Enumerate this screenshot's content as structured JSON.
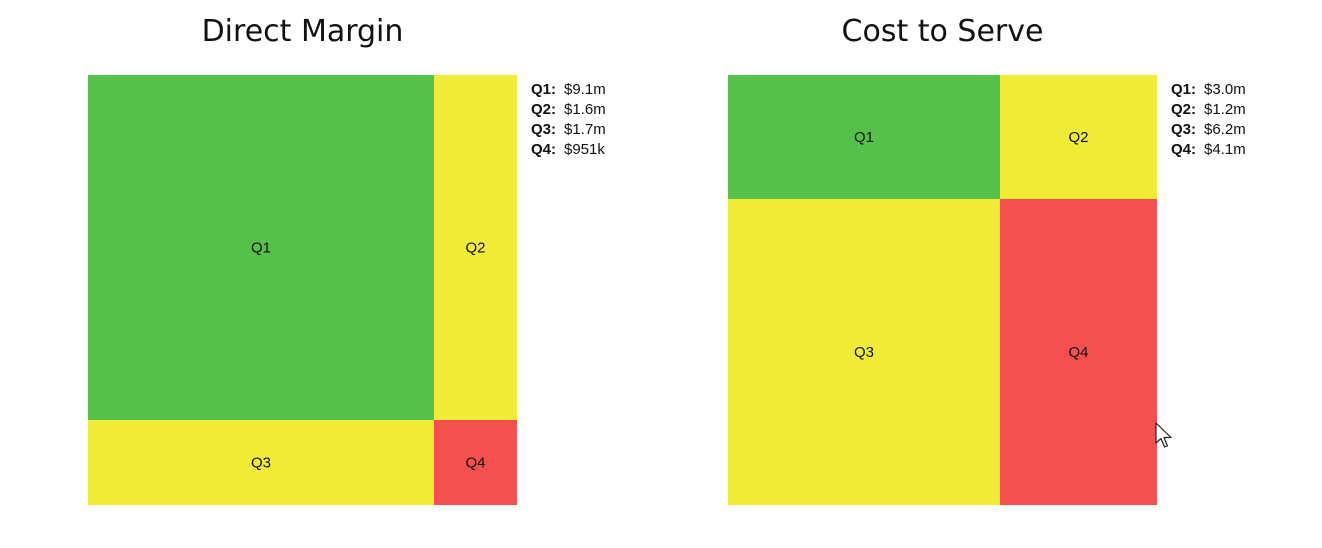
{
  "colors": {
    "green": "#55c14a",
    "yellow": "#f0eb37",
    "red": "#f55050"
  },
  "chart_data": [
    {
      "type": "treemap",
      "title": "Direct Margin",
      "cells": [
        {
          "label": "Q1",
          "color": "green"
        },
        {
          "label": "Q2",
          "color": "yellow"
        },
        {
          "label": "Q3",
          "color": "yellow"
        },
        {
          "label": "Q4",
          "color": "red"
        }
      ],
      "legend": [
        {
          "key": "Q1:",
          "value": "$9.1m"
        },
        {
          "key": "Q2:",
          "value": "$1.6m"
        },
        {
          "key": "Q3:",
          "value": "$1.7m"
        },
        {
          "key": "Q4:",
          "value": "$951k"
        }
      ]
    },
    {
      "type": "treemap",
      "title": "Cost to Serve",
      "cells": [
        {
          "label": "Q1",
          "color": "green"
        },
        {
          "label": "Q2",
          "color": "yellow"
        },
        {
          "label": "Q3",
          "color": "yellow"
        },
        {
          "label": "Q4",
          "color": "red"
        }
      ],
      "legend": [
        {
          "key": "Q1:",
          "value": "$3.0m"
        },
        {
          "key": "Q2:",
          "value": "$1.2m"
        },
        {
          "key": "Q3:",
          "value": "$6.2m"
        },
        {
          "key": "Q4:",
          "value": "$4.1m"
        }
      ]
    }
  ],
  "cursor_icon": "mouse-pointer-icon"
}
